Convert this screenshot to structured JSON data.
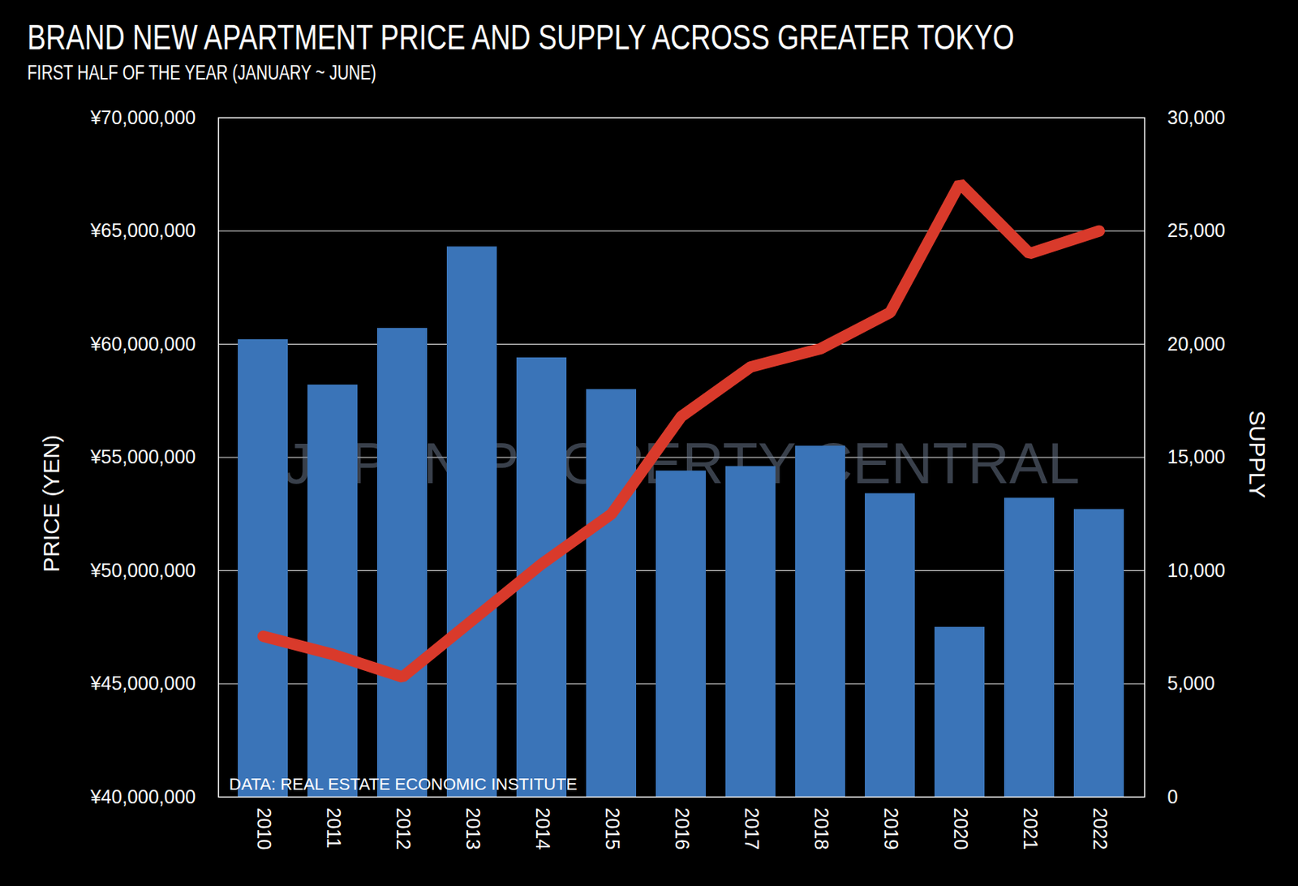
{
  "chart_data": {
    "type": "bar",
    "title": "BRAND NEW APARTMENT PRICE AND SUPPLY ACROSS GREATER TOKYO",
    "subtitle": "FIRST HALF OF THE YEAR (JANUARY ~ JUNE)",
    "ylabel": "PRICE (YEN)",
    "y2label": "SUPPLY",
    "watermark": "JAPAN PROPERTY CENTRAL",
    "caption": "DATA: REAL ESTATE ECONOMIC INSTITUTE",
    "categories": [
      "2010",
      "2011",
      "2012",
      "2013",
      "2014",
      "2015",
      "2016",
      "2017",
      "2018",
      "2019",
      "2020",
      "2021",
      "2022"
    ],
    "series": [
      {
        "type": "bar",
        "axis": "y2",
        "color": "#3a74b8",
        "values": [
          20200,
          18200,
          20700,
          24300,
          19400,
          18000,
          14400,
          14600,
          15500,
          13400,
          7500,
          13200,
          12700
        ]
      },
      {
        "type": "line",
        "color": "#d93a2b",
        "values": [
          47100000,
          46300000,
          45300000,
          47800000,
          50300000,
          52500000,
          56800000,
          59000000,
          59800000,
          61400000,
          67100000,
          64000000,
          65000000
        ]
      }
    ],
    "ylim": [
      40000000,
      70000000
    ],
    "yticks": [
      {
        "value": 40000000,
        "label": "¥40,000,000"
      },
      {
        "value": 45000000,
        "label": "¥45,000,000"
      },
      {
        "value": 50000000,
        "label": "¥50,000,000"
      },
      {
        "value": 55000000,
        "label": "¥55,000,000"
      },
      {
        "value": 60000000,
        "label": "¥60,000,000"
      },
      {
        "value": 65000000,
        "label": "¥65,000,000"
      },
      {
        "value": 70000000,
        "label": "¥70,000,000"
      }
    ],
    "y2lim": [
      0,
      30000
    ],
    "y2ticks": [
      0,
      {
        "value": 5000,
        "label": "5,000"
      },
      {
        "value": 10000,
        "label": "10,000"
      },
      {
        "value": 15000,
        "label": "15,000"
      },
      {
        "value": 20000,
        "label": "20,000"
      },
      {
        "value": 25000,
        "label": "25,000"
      },
      {
        "value": 30000,
        "label": "30,000"
      }
    ],
    "grid": true
  }
}
